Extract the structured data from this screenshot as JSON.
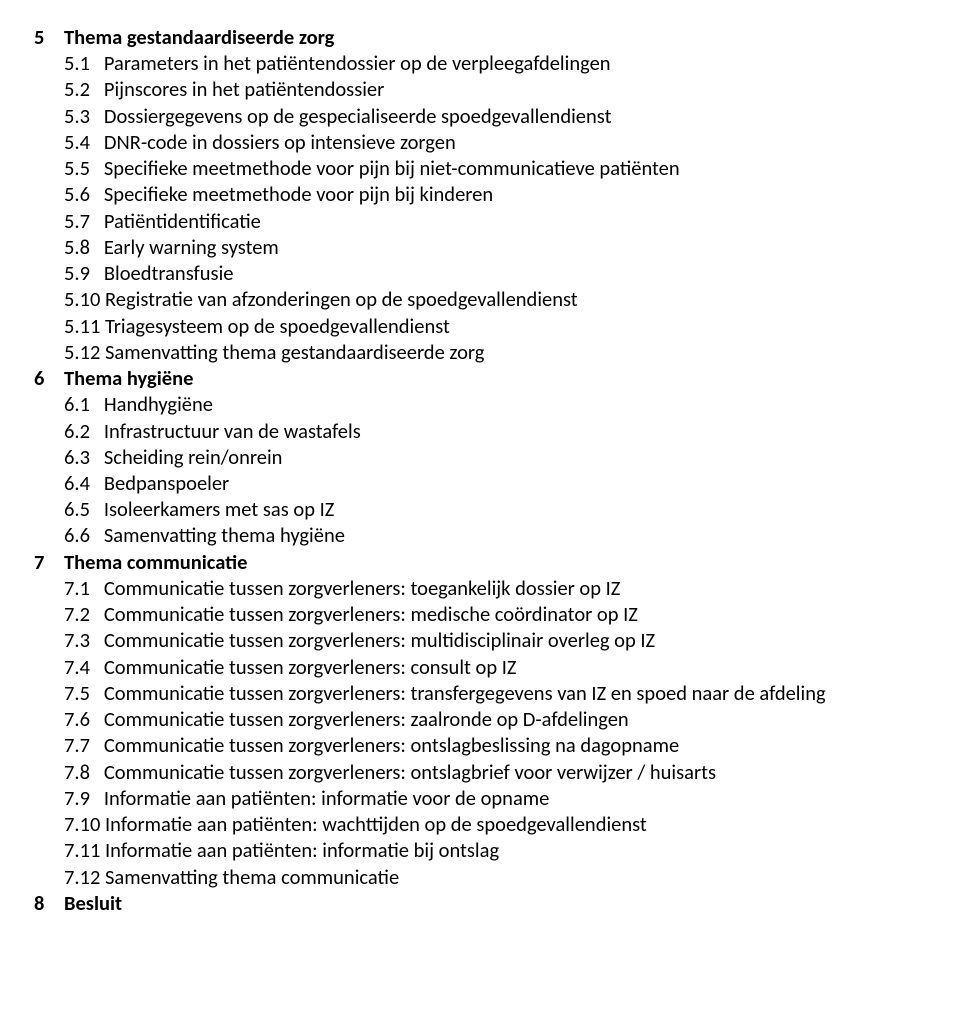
{
  "sections": [
    {
      "num": "5",
      "title": "Thema gestandaardiseerde zorg",
      "bold": true,
      "items": [
        {
          "num": "5.1",
          "text": "Parameters in het patiëntendossier op de verpleegafdelingen",
          "spaced": true
        },
        {
          "num": "5.2",
          "text": "Pijnscores in het patiëntendossier",
          "spaced": true
        },
        {
          "num": "5.3",
          "text": "Dossiergegevens op de gespecialiseerde spoedgevallendienst",
          "spaced": true
        },
        {
          "num": "5.4",
          "text": "DNR-code in dossiers op intensieve zorgen",
          "spaced": true
        },
        {
          "num": "5.5",
          "text": "Specifieke meetmethode voor pijn bij niet-communicatieve patiënten",
          "spaced": true
        },
        {
          "num": "5.6",
          "text": "Specifieke meetmethode voor pijn bij kinderen",
          "spaced": true
        },
        {
          "num": "5.7",
          "text": "Patiëntidentificatie",
          "spaced": true
        },
        {
          "num": "5.8",
          "text": "Early warning system",
          "spaced": true
        },
        {
          "num": "5.9",
          "text": "Bloedtransfusie",
          "spaced": true
        },
        {
          "num": "5.10",
          "text": "Registratie van afzonderingen op de spoedgevallendienst",
          "spaced": false
        },
        {
          "num": "5.11",
          "text": "Triagesysteem op de spoedgevallendienst",
          "spaced": false
        },
        {
          "num": "5.12",
          "text": "Samenvatting thema gestandaardiseerde zorg",
          "spaced": false
        }
      ]
    },
    {
      "num": "6",
      "title": "Thema hygiëne",
      "bold": true,
      "items": [
        {
          "num": "6.1",
          "text": "Handhygiëne",
          "spaced": true
        },
        {
          "num": "6.2",
          "text": "Infrastructuur van de wastafels",
          "spaced": true
        },
        {
          "num": "6.3",
          "text": "Scheiding rein/onrein",
          "spaced": true
        },
        {
          "num": "6.4",
          "text": "Bedpanspoeler",
          "spaced": true
        },
        {
          "num": "6.5",
          "text": "Isoleerkamers met sas op IZ",
          "spaced": true
        },
        {
          "num": "6.6",
          "text": "Samenvatting thema hygiëne",
          "spaced": true
        }
      ]
    },
    {
      "num": "7",
      "title": "Thema communicatie",
      "bold": true,
      "items": [
        {
          "num": "7.1",
          "text": "Communicatie tussen zorgverleners: toegankelijk dossier op IZ",
          "spaced": true
        },
        {
          "num": "7.2",
          "text": "Communicatie tussen zorgverleners: medische coördinator op IZ",
          "spaced": true
        },
        {
          "num": "7.3",
          "text": "Communicatie tussen zorgverleners: multidisciplinair overleg op IZ",
          "spaced": true
        },
        {
          "num": "7.4",
          "text": "Communicatie tussen zorgverleners: consult op IZ",
          "spaced": true
        },
        {
          "num": "7.5",
          "text": "Communicatie tussen zorgverleners: transfergegevens van IZ en spoed naar de afdeling",
          "spaced": true
        },
        {
          "num": "7.6",
          "text": "Communicatie tussen zorgverleners: zaalronde op D-afdelingen",
          "spaced": true
        },
        {
          "num": "7.7",
          "text": "Communicatie tussen zorgverleners: ontslagbeslissing na dagopname",
          "spaced": true
        },
        {
          "num": "7.8",
          "text": "Communicatie tussen zorgverleners: ontslagbrief voor verwijzer / huisarts",
          "spaced": true
        },
        {
          "num": "7.9",
          "text": "Informatie aan patiënten: informatie voor de opname",
          "spaced": true
        },
        {
          "num": "7.10",
          "text": "Informatie aan patiënten: wachttijden op de spoedgevallendienst",
          "spaced": false
        },
        {
          "num": "7.11",
          "text": "Informatie aan patiënten: informatie bij ontslag",
          "spaced": false
        },
        {
          "num": "7.12",
          "text": "Samenvatting thema communicatie",
          "spaced": false
        }
      ]
    },
    {
      "num": "8",
      "title": "Besluit",
      "bold": true,
      "items": []
    }
  ]
}
